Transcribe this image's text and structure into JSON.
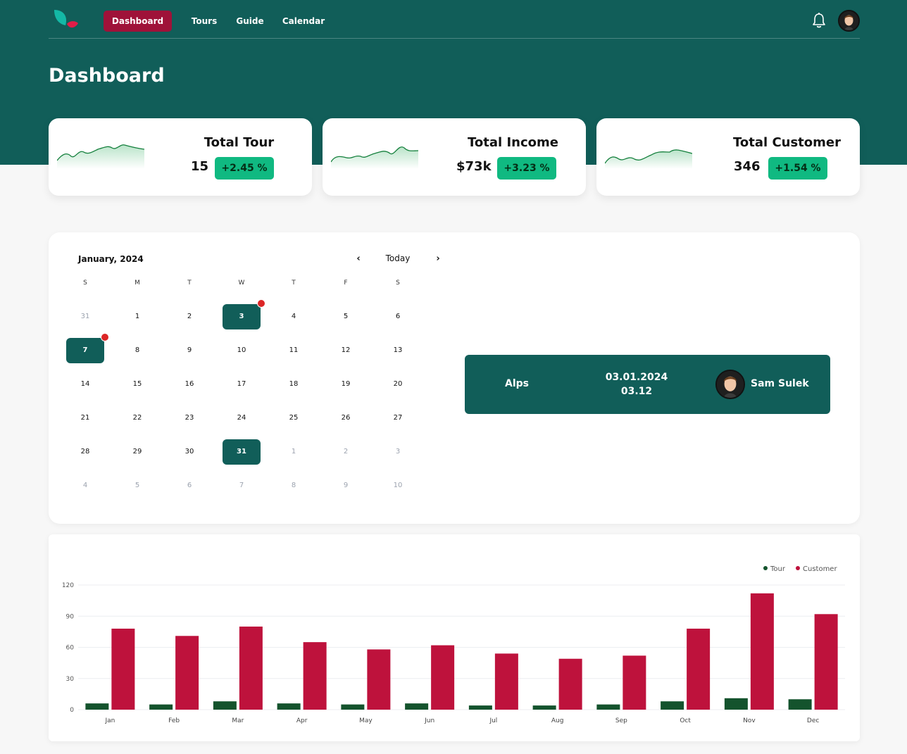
{
  "nav": {
    "items": [
      "Dashboard",
      "Tours",
      "Guide",
      "Calendar"
    ],
    "active_index": 0,
    "notification_icon": "bell-icon",
    "avatar": "user-avatar"
  },
  "page_title": "Dashboard",
  "stats": [
    {
      "title": "Total Tour",
      "value": "15",
      "change": "+2.45 %"
    },
    {
      "title": "Total Income",
      "value": "$73k",
      "change": "+3.23 %"
    },
    {
      "title": "Total Customer",
      "value": "346",
      "change": "+1.54 %"
    }
  ],
  "calendar": {
    "month_label": "January, 2024",
    "today_label": "Today",
    "prev_icon": "chevron-left-icon",
    "next_icon": "chevron-right-icon",
    "weekdays": [
      "S",
      "M",
      "T",
      "W",
      "T",
      "F",
      "S"
    ],
    "weeks": [
      [
        "31",
        "1",
        "2",
        "3",
        "4",
        "5",
        "6"
      ],
      [
        "7",
        "8",
        "9",
        "10",
        "11",
        "12",
        "13"
      ],
      [
        "14",
        "15",
        "16",
        "17",
        "18",
        "19",
        "20"
      ],
      [
        "21",
        "22",
        "23",
        "24",
        "25",
        "26",
        "27"
      ],
      [
        "28",
        "29",
        "30",
        "31",
        "1",
        "2",
        "3"
      ],
      [
        "4",
        "5",
        "6",
        "7",
        "8",
        "9",
        "10"
      ]
    ],
    "highlighted": [
      "3",
      "7",
      "31"
    ],
    "event_marked": [
      "3",
      "7"
    ]
  },
  "event": {
    "place": "Alps",
    "date": "03.01.2024",
    "time": "03.12",
    "guide_name": "Sam Sulek"
  },
  "colors": {
    "primary": "#115e59",
    "nav_active": "#9f1239",
    "badge": "#10b981",
    "tour": "#14532d",
    "customer": "#be123c",
    "event_dot": "#dc2626"
  },
  "chart_data": {
    "type": "bar",
    "categories": [
      "Jan",
      "Feb",
      "Mar",
      "Apr",
      "May",
      "Jun",
      "Jul",
      "Aug",
      "Sep",
      "Oct",
      "Nov",
      "Dec"
    ],
    "series": [
      {
        "name": "Tour",
        "values": [
          6,
          5,
          8,
          6,
          5,
          6,
          4,
          4,
          5,
          8,
          11,
          10
        ]
      },
      {
        "name": "Customer",
        "values": [
          78,
          71,
          80,
          65,
          58,
          62,
          54,
          49,
          52,
          78,
          112,
          92
        ]
      }
    ],
    "yticks": [
      "0",
      "30",
      "60",
      "90",
      "120"
    ],
    "ylim": [
      0,
      120
    ],
    "grid": true,
    "legend": "top-right"
  }
}
